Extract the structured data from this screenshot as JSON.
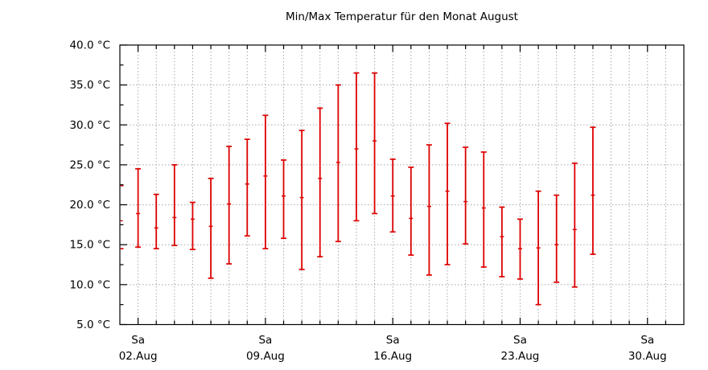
{
  "chart_data": {
    "type": "errorbar",
    "title": "Min/Max Temperatur für den Monat August",
    "ylim": [
      5,
      40
    ],
    "x_range_days": [
      1,
      32
    ],
    "grid": true,
    "bar_color": "#dd0000",
    "grid_color": "#a8a8a8",
    "axis_color": "#000000",
    "y_ticks": [
      {
        "value": 5,
        "label": "5.0 °C"
      },
      {
        "value": 10,
        "label": "10.0 °C"
      },
      {
        "value": 15,
        "label": "15.0 °C"
      },
      {
        "value": 20,
        "label": "20.0 °C"
      },
      {
        "value": 25,
        "label": "25.0 °C"
      },
      {
        "value": 30,
        "label": "30.0 °C"
      },
      {
        "value": 35,
        "label": "35.0 °C"
      },
      {
        "value": 40,
        "label": "40.0 °C"
      }
    ],
    "x_major_ticks": [
      {
        "day": 2,
        "weekday": "Sa",
        "date": "02.Aug"
      },
      {
        "day": 9,
        "weekday": "Sa",
        "date": "09.Aug"
      },
      {
        "day": 16,
        "weekday": "Sa",
        "date": "16.Aug"
      },
      {
        "day": 23,
        "weekday": "Sa",
        "date": "23.Aug"
      },
      {
        "day": 30,
        "weekday": "Sa",
        "date": "30.Aug"
      }
    ],
    "points": [
      {
        "day": 1,
        "min": 14.5,
        "mean": 18.0,
        "max": 22.4,
        "clipped": true
      },
      {
        "day": 2,
        "min": 14.7,
        "mean": 18.9,
        "max": 24.5
      },
      {
        "day": 3,
        "min": 14.5,
        "mean": 17.1,
        "max": 21.3
      },
      {
        "day": 4,
        "min": 14.9,
        "mean": 18.4,
        "max": 25.0
      },
      {
        "day": 5,
        "min": 14.4,
        "mean": 18.2,
        "max": 20.3
      },
      {
        "day": 6,
        "min": 10.8,
        "mean": 17.3,
        "max": 23.3
      },
      {
        "day": 7,
        "min": 12.6,
        "mean": 20.1,
        "max": 27.3
      },
      {
        "day": 8,
        "min": 16.1,
        "mean": 22.6,
        "max": 28.2
      },
      {
        "day": 9,
        "min": 14.5,
        "mean": 23.6,
        "max": 31.2
      },
      {
        "day": 10,
        "min": 15.8,
        "mean": 21.1,
        "max": 25.6
      },
      {
        "day": 11,
        "min": 11.9,
        "mean": 20.9,
        "max": 29.3
      },
      {
        "day": 12,
        "min": 13.5,
        "mean": 23.3,
        "max": 32.1
      },
      {
        "day": 13,
        "min": 15.4,
        "mean": 25.3,
        "max": 35.0
      },
      {
        "day": 14,
        "min": 18.0,
        "mean": 27.0,
        "max": 36.5
      },
      {
        "day": 15,
        "min": 18.9,
        "mean": 28.0,
        "max": 36.5
      },
      {
        "day": 16,
        "min": 16.6,
        "mean": 21.1,
        "max": 25.7
      },
      {
        "day": 17,
        "min": 13.7,
        "mean": 18.3,
        "max": 24.7
      },
      {
        "day": 18,
        "min": 11.2,
        "mean": 19.8,
        "max": 27.5
      },
      {
        "day": 19,
        "min": 12.5,
        "mean": 21.7,
        "max": 30.2
      },
      {
        "day": 20,
        "min": 15.1,
        "mean": 20.4,
        "max": 27.2
      },
      {
        "day": 21,
        "min": 12.2,
        "mean": 19.6,
        "max": 26.6
      },
      {
        "day": 22,
        "min": 11.0,
        "mean": 16.0,
        "max": 19.7
      },
      {
        "day": 23,
        "min": 10.7,
        "mean": 14.5,
        "max": 18.2
      },
      {
        "day": 24,
        "min": 7.5,
        "mean": 14.6,
        "max": 21.7
      },
      {
        "day": 25,
        "min": 10.3,
        "mean": 15.0,
        "max": 21.2
      },
      {
        "day": 26,
        "min": 9.7,
        "mean": 16.9,
        "max": 25.2
      },
      {
        "day": 27,
        "min": 13.8,
        "mean": 21.2,
        "max": 29.7
      }
    ]
  }
}
